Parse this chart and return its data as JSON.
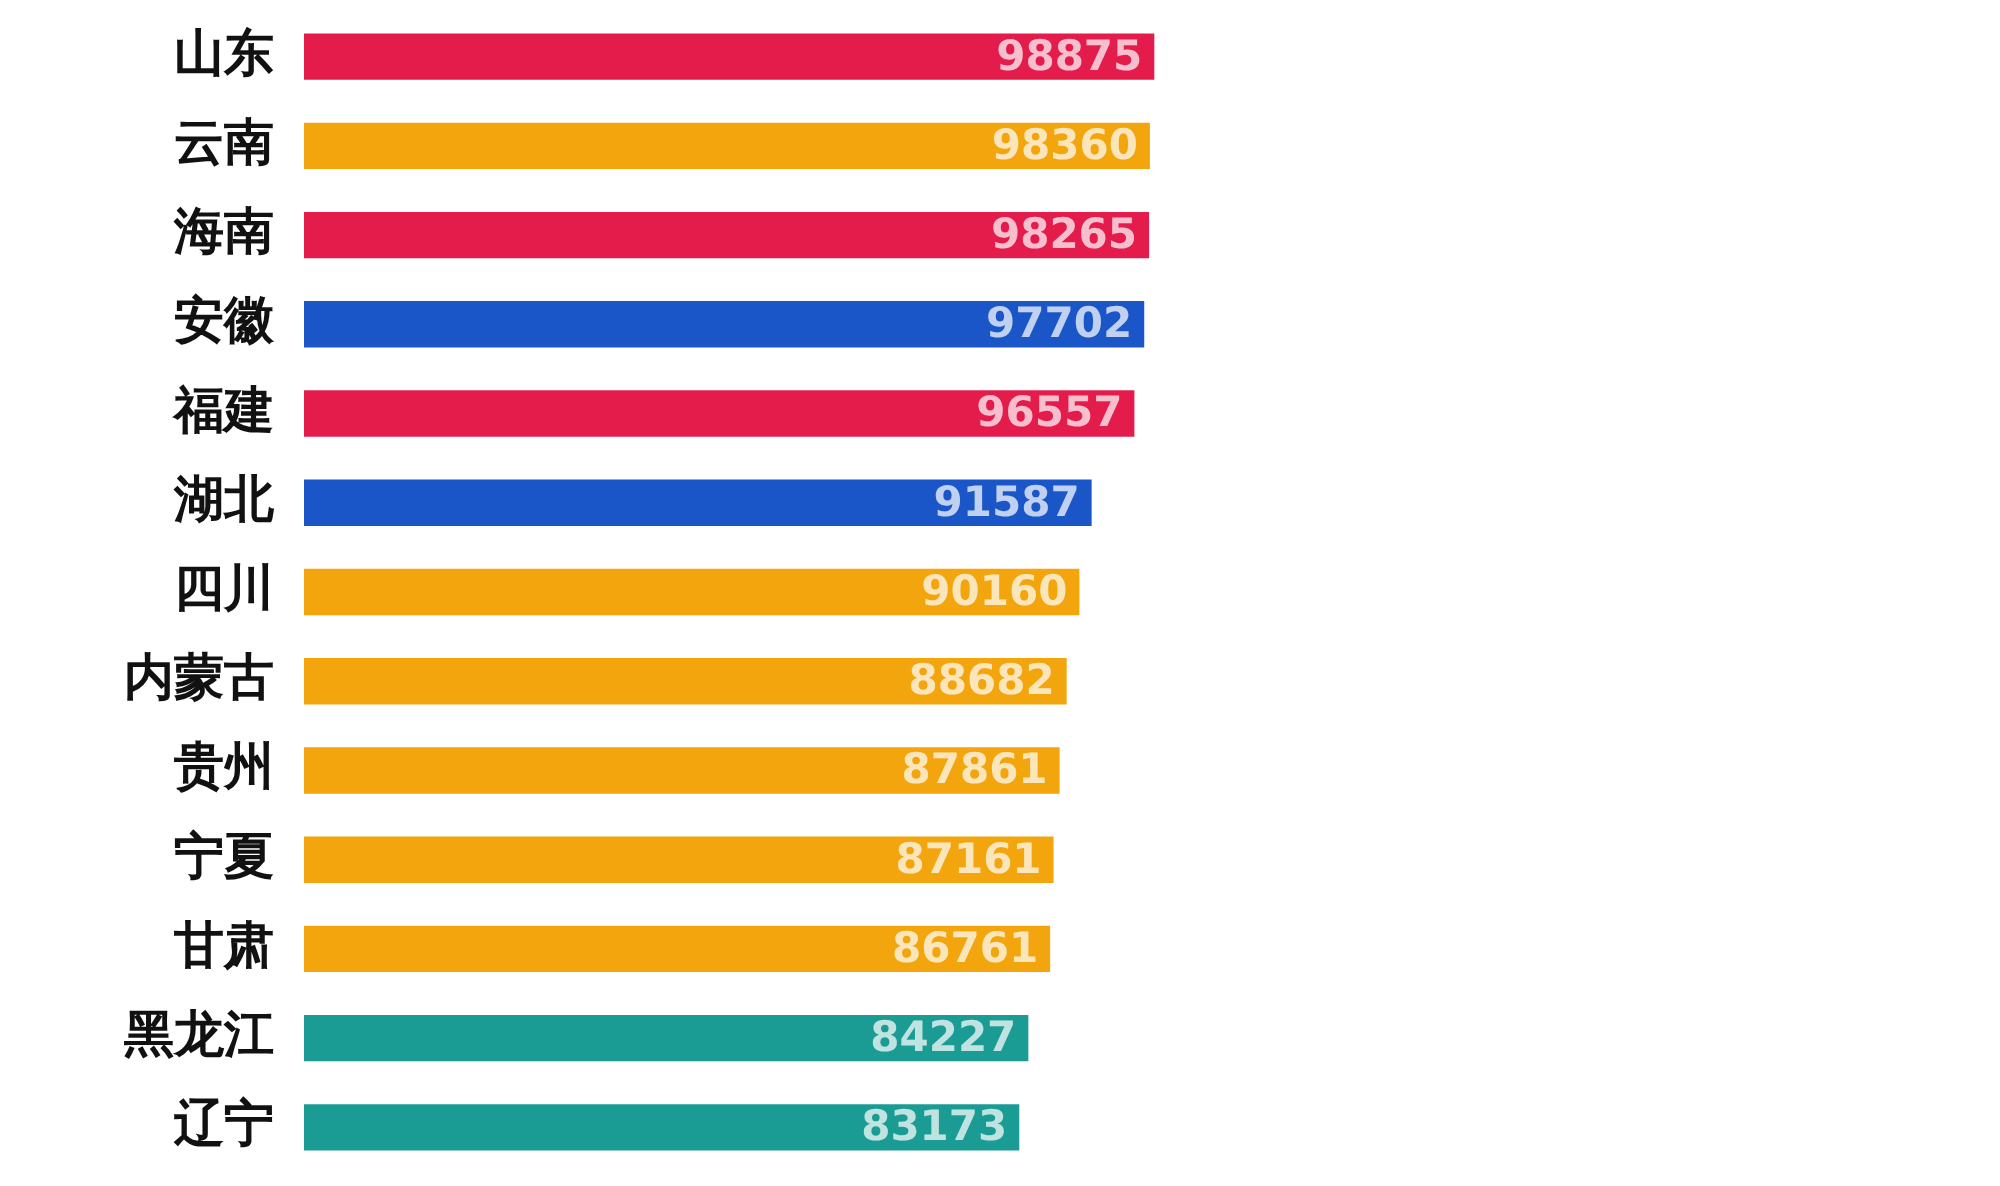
{
  "chart_data": {
    "type": "bar",
    "orientation": "horizontal",
    "categories": [
      "山东",
      "云南",
      "海南",
      "安徽",
      "福建",
      "湖北",
      "四川",
      "内蒙古",
      "贵州",
      "宁夏",
      "甘肃",
      "黑龙江",
      "辽宁"
    ],
    "values": [
      98875,
      98360,
      98265,
      97702,
      96557,
      91587,
      90160,
      88682,
      87861,
      87161,
      86761,
      84227,
      83173
    ],
    "colors": [
      "#e31c4c",
      "#f2a50c",
      "#e31c4c",
      "#1a56c8",
      "#e31c4c",
      "#1a56c8",
      "#f2a50c",
      "#f2a50c",
      "#f2a50c",
      "#f2a50c",
      "#f2a50c",
      "#1a9c94",
      "#1a9c94"
    ],
    "data_labels": true,
    "tick_labels": "y",
    "grid": false,
    "legend": false
  }
}
